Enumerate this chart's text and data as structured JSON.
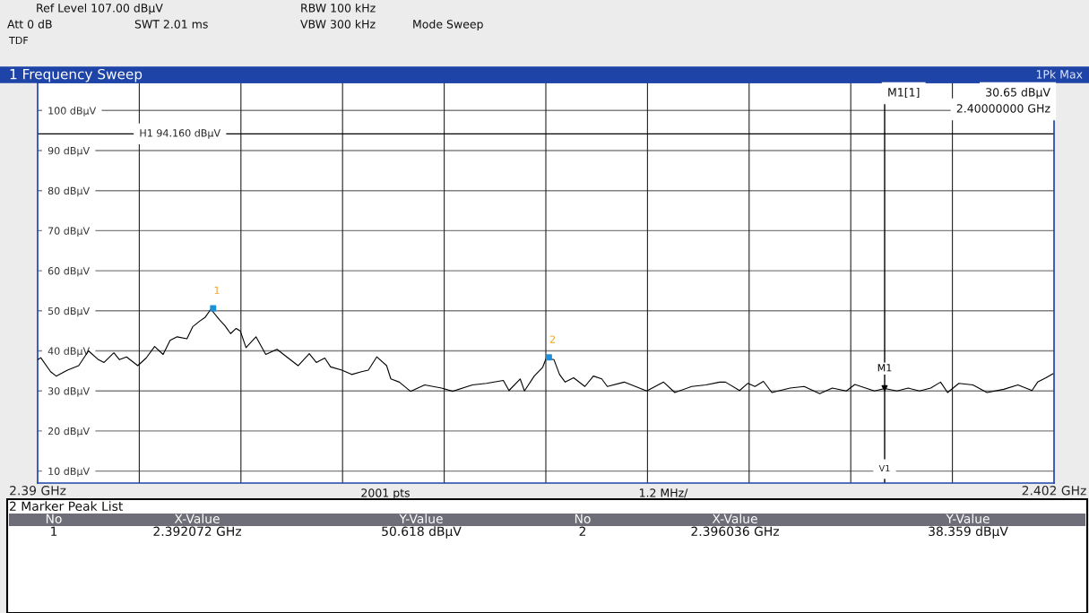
{
  "chart_data": {
    "type": "line",
    "title": "1 Frequency Sweep",
    "xlim": [
      2.39,
      2.402
    ],
    "ylim": [
      7,
      107
    ],
    "xticks": [
      {
        "value": 2.39,
        "label": "2.39 GHz"
      },
      {
        "value": 2.3912,
        "label": null
      },
      {
        "value": 2.3924,
        "label": null
      },
      {
        "value": 2.3936,
        "label": null
      },
      {
        "value": 2.3948,
        "label": null
      },
      {
        "value": 2.396,
        "label": null
      },
      {
        "value": 2.3972,
        "label": null
      },
      {
        "value": 2.3984,
        "label": null
      },
      {
        "value": 2.3996,
        "label": null
      },
      {
        "value": 2.4008,
        "label": null
      },
      {
        "value": 2.402,
        "label": "2.402 GHz"
      }
    ],
    "yticks": [
      {
        "value": 10,
        "label": "10 dBμV"
      },
      {
        "value": 20,
        "label": "20 dBμV"
      },
      {
        "value": 30,
        "label": "30 dBμV"
      },
      {
        "value": 40,
        "label": "40 dBμV"
      },
      {
        "value": 50,
        "label": "50 dBμV"
      },
      {
        "value": 60,
        "label": "60 dBμV"
      },
      {
        "value": 70,
        "label": "70 dBμV"
      },
      {
        "value": 80,
        "label": "80 dBμV"
      },
      {
        "value": 90,
        "label": "90 dBμV"
      },
      {
        "value": 100,
        "label": "100 dBμV"
      }
    ],
    "grid": true,
    "series": [
      {
        "color": "#000000",
        "x": [
          2.390003,
          2.390037,
          2.390153,
          2.390219,
          2.390352,
          2.390485,
          2.390601,
          2.390717,
          2.390784,
          2.3909,
          2.390966,
          2.391049,
          2.391182,
          2.391281,
          2.391381,
          2.391481,
          2.391564,
          2.391647,
          2.391763,
          2.39183,
          2.391912,
          2.391979,
          2.392045,
          2.392145,
          2.392211,
          2.392278,
          2.392344,
          2.392394,
          2.39246,
          2.392578,
          2.392693,
          2.392826,
          2.392941,
          2.393075,
          2.393207,
          2.39329,
          2.39339,
          2.393459,
          2.393592,
          2.393708,
          2.393824,
          2.393904,
          2.394004,
          2.39412,
          2.39417,
          2.39427,
          2.394402,
          2.394569,
          2.394768,
          2.3949,
          2.395133,
          2.395299,
          2.395498,
          2.395565,
          2.395697,
          2.395747,
          2.395863,
          2.395963,
          2.396003,
          2.396096,
          2.396162,
          2.396228,
          2.396328,
          2.396461,
          2.396561,
          2.39666,
          2.396726,
          2.396925,
          2.397191,
          2.39739,
          2.397523,
          2.397722,
          2.397888,
          2.398054,
          2.398121,
          2.398287,
          2.398386,
          2.398469,
          2.398569,
          2.398668,
          2.398884,
          2.39905,
          2.399233,
          2.399382,
          2.399548,
          2.399648,
          2.39988,
          2.4,
          2.400146,
          2.400278,
          2.400411,
          2.400544,
          2.40066,
          2.400743,
          2.400876,
          2.401042,
          2.401208,
          2.401407,
          2.401573,
          2.40174,
          2.401806,
          2.401905,
          2.401988
        ],
        "values": [
          37.8,
          38.3,
          34.8,
          33.7,
          35.2,
          36.3,
          40.0,
          37.8,
          37.1,
          39.5,
          37.8,
          38.5,
          36.3,
          38.2,
          41.1,
          39.1,
          42.6,
          43.5,
          43.0,
          46.0,
          47.4,
          48.4,
          50.4,
          47.8,
          46.3,
          44.3,
          45.6,
          44.9,
          40.8,
          43.5,
          39.1,
          40.4,
          38.5,
          36.3,
          39.3,
          37.1,
          38.2,
          36.0,
          35.2,
          34.1,
          34.8,
          35.2,
          38.5,
          36.3,
          33.0,
          32.2,
          29.9,
          31.5,
          30.7,
          29.9,
          31.5,
          31.9,
          32.6,
          30.1,
          33.0,
          30.0,
          33.7,
          35.9,
          38.1,
          37.8,
          34.1,
          32.2,
          33.3,
          31.1,
          33.7,
          33.0,
          31.1,
          32.2,
          30.0,
          32.2,
          29.6,
          31.1,
          31.5,
          32.2,
          32.2,
          30.1,
          31.9,
          31.1,
          32.4,
          29.6,
          30.7,
          31.1,
          29.3,
          30.7,
          30.0,
          31.6,
          30.0,
          30.6,
          30.0,
          30.7,
          30.0,
          30.7,
          32.2,
          29.6,
          31.9,
          31.5,
          29.6,
          30.4,
          31.5,
          30.1,
          32.2,
          33.3,
          34.3
        ]
      },
      {
        "type": "scatter",
        "color": "#1e90d8",
        "marker": "square",
        "x": [
          2.392072,
          2.396036
        ],
        "values": [
          50.618,
          38.359
        ]
      },
      {
        "type": "scatter",
        "color": "#000000",
        "marker": "triangle",
        "x": [
          2.4
        ],
        "values": [
          30.65
        ]
      }
    ],
    "ref_lines": [
      {
        "axis": "y",
        "value": 94.16,
        "label": "H1 94.160 dBμV",
        "color": "#000000"
      },
      {
        "axis": "x",
        "value": 2.4,
        "label": "V1",
        "color": "#000000"
      }
    ],
    "annotations": [
      "Ref Level 107.00 dBμV",
      "Att 0 dB",
      "SWT 2.01 ms",
      "RBW 100 kHz",
      "VBW 300 kHz",
      "Mode Sweep",
      "TDF",
      "1Pk Max",
      "M1[1]",
      "30.65 dBμV",
      "2.40000000 GHz",
      "2001 pts",
      "1.2 MHz/",
      "2 Marker Peak List",
      "No",
      "X-Value",
      "Y-Value",
      "No",
      "X-Value",
      "Y-Value",
      "1",
      "2.392072 GHz",
      "50.618 dBμV",
      "2",
      "2.396036 GHz",
      "38.359 dBμV",
      {
        "text": "1",
        "x": 2.392072,
        "y": 50.618
      },
      {
        "text": "2",
        "x": 2.396036,
        "y": 38.359
      },
      {
        "text": "M1",
        "x": 2.4,
        "y": 30.65
      }
    ]
  }
}
